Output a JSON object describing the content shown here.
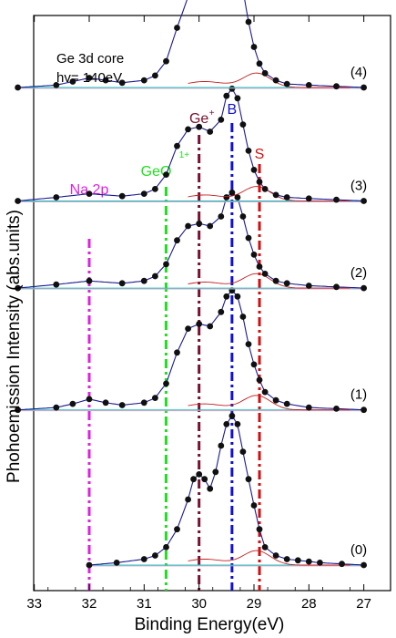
{
  "chart_data": {
    "type": "line",
    "title": "",
    "annotation_lines": [
      "Ge 3d core",
      "hv= 140eV"
    ],
    "xlabel": "Binding Energy(eV)",
    "ylabel": "Phohoemission Intensity (abs.units)",
    "xlim": [
      33.3,
      26.8
    ],
    "x_reversed": true,
    "xticks": [
      33,
      32,
      31,
      30,
      29,
      28,
      27
    ],
    "grid": false,
    "legend": "none",
    "peak_markers": [
      {
        "name": "Na 2p",
        "x": 32.0,
        "color": "#e020e0"
      },
      {
        "name": "GeO",
        "superscript": "1+",
        "x": 30.6,
        "color": "#20e020"
      },
      {
        "name": "Ge",
        "superscript": "+",
        "x": 30.0,
        "color": "#7a1030"
      },
      {
        "name": "B",
        "x": 29.4,
        "color": "#1010d0"
      },
      {
        "name": "S",
        "x": 28.9,
        "color": "#d01010"
      }
    ],
    "spectra": [
      {
        "label": "(0)",
        "baseline": 0.0,
        "x": [
          32.0,
          31.5,
          31.0,
          30.8,
          30.6,
          30.4,
          30.2,
          30.1,
          30.0,
          29.9,
          29.8,
          29.7,
          29.6,
          29.5,
          29.4,
          29.3,
          29.2,
          29.1,
          29.0,
          28.9,
          28.8,
          28.6,
          28.4,
          28.2,
          28.0,
          27.8,
          27.4,
          27.0
        ],
        "y": [
          0.0,
          0.02,
          0.05,
          0.08,
          0.15,
          0.3,
          0.55,
          0.72,
          0.76,
          0.72,
          0.64,
          0.78,
          1.0,
          1.18,
          1.25,
          1.18,
          0.95,
          0.72,
          0.5,
          0.3,
          0.15,
          0.08,
          0.05,
          0.04,
          0.03,
          0.02,
          0.01,
          0.0
        ]
      },
      {
        "label": "(1)",
        "baseline": 1.3,
        "x": [
          33.3,
          32.6,
          32.3,
          32.0,
          31.7,
          31.4,
          31.0,
          30.8,
          30.6,
          30.4,
          30.2,
          30.0,
          29.8,
          29.6,
          29.5,
          29.4,
          29.3,
          29.2,
          29.1,
          29.0,
          28.9,
          28.8,
          28.6,
          28.4,
          28.0,
          27.5,
          27.0
        ],
        "y": [
          0.0,
          0.02,
          0.05,
          0.09,
          0.06,
          0.04,
          0.06,
          0.1,
          0.22,
          0.48,
          0.68,
          0.72,
          0.7,
          0.82,
          0.95,
          1.0,
          0.95,
          0.78,
          0.55,
          0.38,
          0.25,
          0.15,
          0.08,
          0.05,
          0.02,
          0.01,
          0.0
        ]
      },
      {
        "label": "(2)",
        "baseline": 2.32,
        "x": [
          33.3,
          32.6,
          32.0,
          31.4,
          31.0,
          30.8,
          30.6,
          30.4,
          30.2,
          30.0,
          29.8,
          29.6,
          29.5,
          29.4,
          29.3,
          29.2,
          29.1,
          29.0,
          28.9,
          28.8,
          28.6,
          28.4,
          28.0,
          27.5,
          27.0
        ],
        "y": [
          0.0,
          0.03,
          0.06,
          0.04,
          0.06,
          0.1,
          0.2,
          0.4,
          0.52,
          0.54,
          0.52,
          0.6,
          0.76,
          0.8,
          0.76,
          0.6,
          0.42,
          0.28,
          0.18,
          0.12,
          0.06,
          0.04,
          0.02,
          0.01,
          0.0
        ]
      },
      {
        "label": "(3)",
        "baseline": 3.05,
        "x": [
          33.3,
          32.6,
          32.0,
          31.4,
          31.0,
          30.8,
          30.6,
          30.4,
          30.2,
          30.0,
          29.8,
          29.6,
          29.5,
          29.4,
          29.3,
          29.2,
          29.1,
          29.0,
          28.9,
          28.8,
          28.6,
          28.4,
          28.0,
          27.5,
          27.0
        ],
        "y": [
          0.0,
          0.03,
          0.06,
          0.04,
          0.06,
          0.1,
          0.22,
          0.46,
          0.6,
          0.62,
          0.58,
          0.68,
          0.88,
          0.94,
          0.86,
          0.64,
          0.42,
          0.26,
          0.16,
          0.1,
          0.05,
          0.03,
          0.02,
          0.01,
          0.0
        ]
      },
      {
        "label": "(4)",
        "baseline": 4.0,
        "x": [
          33.3,
          32.6,
          32.3,
          32.0,
          31.7,
          31.4,
          31.0,
          30.8,
          30.6,
          30.4,
          30.2,
          30.0,
          29.8,
          29.6,
          29.5,
          29.4,
          29.3,
          29.2,
          29.1,
          29.0,
          28.9,
          28.8,
          28.6,
          28.4,
          28.0,
          27.5,
          27.0
        ],
        "y": [
          0.0,
          0.02,
          0.05,
          0.08,
          0.06,
          0.04,
          0.06,
          0.1,
          0.22,
          0.5,
          0.76,
          0.84,
          0.8,
          0.9,
          1.04,
          1.12,
          1.05,
          0.82,
          0.55,
          0.34,
          0.2,
          0.12,
          0.06,
          0.03,
          0.02,
          0.01,
          0.0
        ]
      }
    ]
  }
}
